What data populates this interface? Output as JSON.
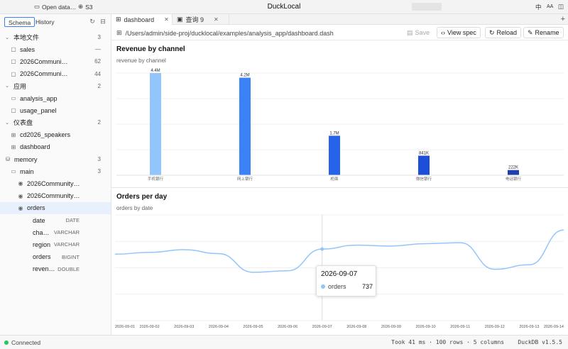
{
  "titlebar": {
    "open_label": "Open data…",
    "s3_label": "S3",
    "app_title": "DuckLocal",
    "lang_label": "中",
    "font_label": "AA"
  },
  "sidebar": {
    "tabs": [
      "Schema",
      "History"
    ],
    "tree": [
      {
        "label": "本地文件",
        "count": "3",
        "level": 0,
        "kind": "group",
        "icon": "chevron-down-icon"
      },
      {
        "label": "sales",
        "count": "—",
        "level": 1,
        "kind": "file",
        "icon": "file-icon"
      },
      {
        "label": "2026Communi…",
        "count": "62",
        "level": 1,
        "kind": "file",
        "icon": "file-icon"
      },
      {
        "label": "2026Communi…",
        "count": "44",
        "level": 1,
        "kind": "file",
        "icon": "file-icon"
      },
      {
        "label": "应用",
        "count": "2",
        "level": 0,
        "kind": "group",
        "icon": "chevron-down-icon"
      },
      {
        "label": "analysis_app",
        "count": "",
        "level": 1,
        "kind": "app",
        "icon": "folder-icon"
      },
      {
        "label": "usage_panel",
        "count": "",
        "level": 1,
        "kind": "app",
        "icon": "file-icon"
      },
      {
        "label": "仪表盘",
        "count": "2",
        "level": 0,
        "kind": "group",
        "icon": "chevron-down-icon"
      },
      {
        "label": "cd2026_speakers",
        "count": "",
        "level": 1,
        "kind": "dash",
        "icon": "grid-icon"
      },
      {
        "label": "dashboard",
        "count": "",
        "level": 1,
        "kind": "dash",
        "icon": "grid-icon"
      },
      {
        "label": "memory",
        "count": "3",
        "level": 0,
        "kind": "db",
        "icon": "database-icon"
      },
      {
        "label": "main",
        "count": "3",
        "level": 1,
        "kind": "schema",
        "icon": "folder-icon"
      },
      {
        "label": "2026Community…",
        "count": "",
        "level": 2,
        "kind": "view",
        "icon": "eye-icon"
      },
      {
        "label": "2026Community…",
        "count": "",
        "level": 2,
        "kind": "view",
        "icon": "eye-icon"
      },
      {
        "label": "orders",
        "count": "",
        "level": 2,
        "kind": "view",
        "icon": "eye-icon",
        "selected": true
      },
      {
        "label": "date",
        "type": "DATE",
        "level": 3,
        "kind": "column"
      },
      {
        "label": "cha…",
        "type": "VARCHAR",
        "level": 3,
        "kind": "column"
      },
      {
        "label": "region",
        "type": "VARCHAR",
        "level": 3,
        "kind": "column"
      },
      {
        "label": "orders",
        "type": "BIGINT",
        "level": 3,
        "kind": "column"
      },
      {
        "label": "reven…",
        "type": "DOUBLE",
        "level": 3,
        "kind": "column"
      }
    ]
  },
  "tabs": [
    {
      "label": "dashboard",
      "icon": "grid-icon",
      "active": true
    },
    {
      "label": "查询 9",
      "icon": "query-icon",
      "active": false
    }
  ],
  "path": "/Users/admin/side-proj/ducklocal/examples/analysis_app/dashboard.dash",
  "actions": {
    "save": "Save",
    "view_spec": "View spec",
    "reload": "Reload",
    "rename": "Rename"
  },
  "bar_panel": {
    "title": "Revenue by channel",
    "subtitle": "revenue by channel"
  },
  "line_panel": {
    "title": "Orders per day",
    "subtitle": "orders by date"
  },
  "chart_data": [
    {
      "type": "bar",
      "title": "Revenue by channel",
      "subtitle": "revenue by channel",
      "categories": [
        "手机银行",
        "网上银行",
        "柜面",
        "微信银行",
        "电话银行"
      ],
      "values": [
        4400000,
        4200000,
        1700000,
        841000,
        222000
      ],
      "data_labels": [
        "4.4M",
        "4.2M",
        "1.7M",
        "841K",
        "222K"
      ],
      "colors": [
        "#93c5fd",
        "#3b82f6",
        "#2563eb",
        "#1d4ed8",
        "#1e40af"
      ],
      "ylim": [
        0,
        4400000
      ],
      "grid": true
    },
    {
      "type": "line",
      "title": "Orders per day",
      "subtitle": "orders by date",
      "x": [
        "2026-09-01",
        "2026-09-02",
        "2026-09-03",
        "2026-09-04",
        "2026-09-05",
        "2026-09-06",
        "2026-09-07",
        "2026-09-08",
        "2026-09-09",
        "2026-09-10",
        "2026-09-11",
        "2026-09-12",
        "2026-09-13",
        "2026-09-14"
      ],
      "series": [
        {
          "name": "orders",
          "values": [
            720,
            726,
            735,
            722,
            660,
            665,
            737,
            750,
            747,
            755,
            758,
            670,
            685,
            800
          ],
          "color": "#93c5fd"
        }
      ],
      "ylim": [
        500,
        850
      ],
      "grid": true,
      "tooltip": {
        "x": "2026-09-07",
        "series": "orders",
        "value": "737"
      }
    }
  ],
  "status": {
    "connection": "Connected",
    "summary": "Took 41 ms · 100 rows · 5 columns    DuckDB v1.5.5"
  }
}
